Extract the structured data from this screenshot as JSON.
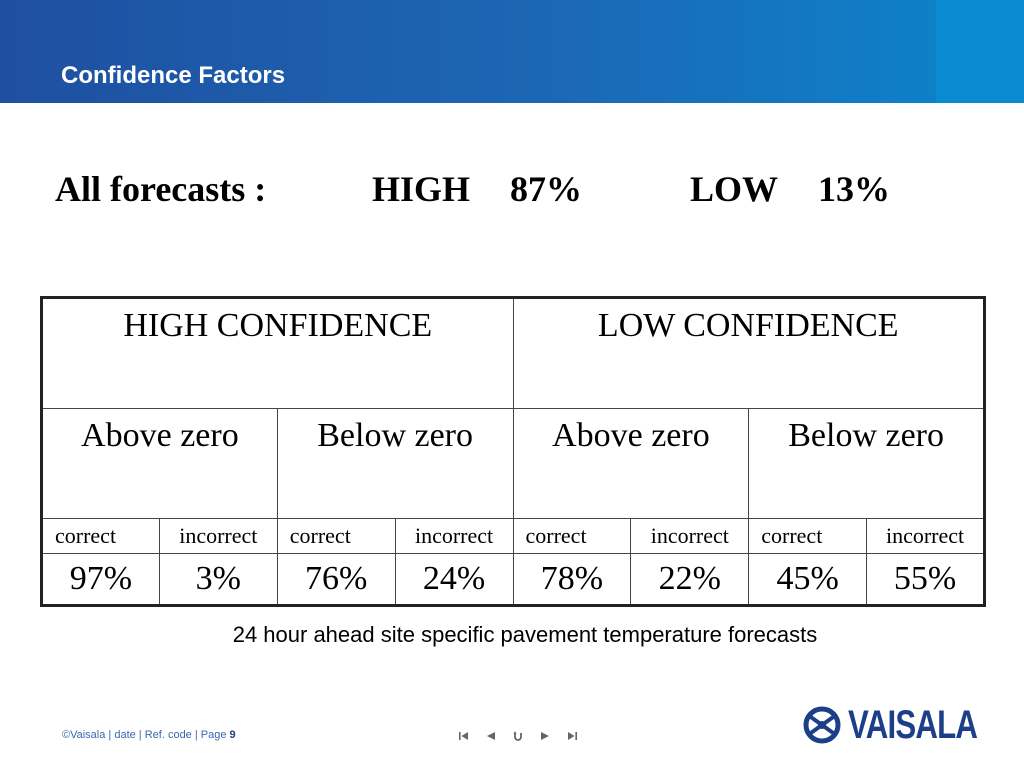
{
  "slide": {
    "title": "Confidence Factors"
  },
  "summary": {
    "label": "All forecasts :",
    "high_label": "HIGH",
    "high_value": "87%",
    "low_label": "LOW",
    "low_value": "13%"
  },
  "table": {
    "groups": [
      "HIGH CONFIDENCE",
      "LOW CONFIDENCE"
    ],
    "subgroups": [
      "Above zero",
      "Below zero",
      "Above zero",
      "Below zero"
    ],
    "outcomes": [
      "correct",
      "incorrect",
      "correct",
      "incorrect",
      "correct",
      "incorrect",
      "correct",
      "incorrect"
    ],
    "values": [
      "97%",
      "3%",
      "76%",
      "24%",
      "78%",
      "22%",
      "45%",
      "55%"
    ]
  },
  "caption": "24 hour ahead site specific pavement temperature forecasts",
  "footer": {
    "text": "©Vaisala | date | Ref. code | Page ",
    "page": "9"
  },
  "navigation": {
    "icons": [
      "first-slide-icon",
      "previous-slide-icon",
      "return-icon",
      "next-slide-icon",
      "last-slide-icon"
    ]
  },
  "logo": {
    "brand": "VAISALA",
    "color": "#1c3f87"
  },
  "colors": {
    "header_start": "#1f4fa0",
    "header_end": "#0a86cc"
  }
}
